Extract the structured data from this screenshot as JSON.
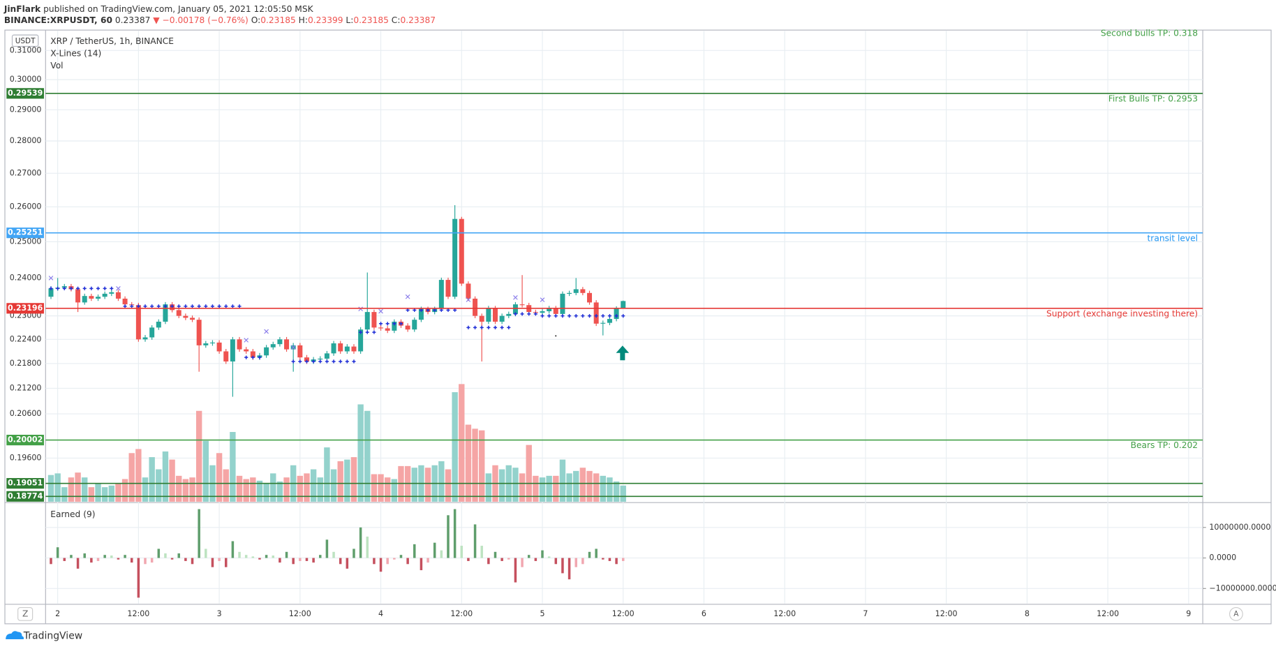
{
  "header": {
    "author": "JinFlark",
    "published": "published on TradingView.com, January 05, 2021 12:05:50 MSK",
    "symbol": "BINANCE:XRPUSDT, 60",
    "price": "0.23387",
    "change": "▼ −0.00178 (−0.76%)",
    "ohlc_labels": [
      "O:",
      "H:",
      "L:",
      "C:"
    ],
    "ohlc_values": [
      "0.23185",
      "0.23399",
      "0.23185",
      "0.23387"
    ]
  },
  "chart_data": {
    "type": "candlestick",
    "legend": [
      "XRP / TetherUS, 1h, BINANCE",
      "X-Lines (14)",
      "Vol"
    ],
    "currency": "USDT",
    "log_scale": true,
    "grid": true,
    "up_color": "#26a69a",
    "down_color": "#ef5350",
    "volume_up_color": "#93d2cc",
    "volume_down_color": "#f5a5a5",
    "ylim": [
      0.1866,
      0.3169
    ],
    "yticks": [
      {
        "value": 0.31,
        "label": "0.31000"
      },
      {
        "value": 0.3,
        "label": "0.30000"
      },
      {
        "value": 0.29,
        "label": "0.29000"
      },
      {
        "value": 0.28,
        "label": "0.28000"
      },
      {
        "value": 0.27,
        "label": "0.27000"
      },
      {
        "value": 0.26,
        "label": "0.26000"
      },
      {
        "value": 0.25,
        "label": "0.25000"
      },
      {
        "value": 0.24,
        "label": "0.24000"
      },
      {
        "value": 0.23,
        "label": "0.23000"
      },
      {
        "value": 0.224,
        "label": "0.22400"
      },
      {
        "value": 0.218,
        "label": "0.21800"
      },
      {
        "value": 0.212,
        "label": "0.21200"
      },
      {
        "value": 0.206,
        "label": "0.20600"
      },
      {
        "value": 0.196,
        "label": "0.19600"
      }
    ],
    "xlim": [
      -1.8,
      170.1
    ],
    "xticks": [
      {
        "value": 0,
        "label": "2"
      },
      {
        "value": 12,
        "label": "12:00"
      },
      {
        "value": 24,
        "label": "3"
      },
      {
        "value": 36,
        "label": "12:00"
      },
      {
        "value": 48,
        "label": "4"
      },
      {
        "value": 60,
        "label": "12:00"
      },
      {
        "value": 72,
        "label": "5"
      },
      {
        "value": 84,
        "label": "12:00"
      },
      {
        "value": 96,
        "label": "6"
      },
      {
        "value": 108,
        "label": "12:00"
      },
      {
        "value": 120,
        "label": "7"
      },
      {
        "value": 132,
        "label": "12:00"
      },
      {
        "value": 144,
        "label": "8"
      },
      {
        "value": 156,
        "label": "12:00"
      },
      {
        "value": 168,
        "label": "9"
      }
    ],
    "x": [
      -1,
      0,
      1,
      2,
      3,
      4,
      5,
      6,
      7,
      8,
      9,
      10,
      11,
      12,
      13,
      14,
      15,
      16,
      17,
      18,
      19,
      20,
      21,
      22,
      23,
      24,
      25,
      26,
      27,
      28,
      29,
      30,
      31,
      32,
      33,
      34,
      35,
      36,
      37,
      38,
      39,
      40,
      41,
      42,
      43,
      44,
      45,
      46,
      47,
      48,
      49,
      50,
      51,
      52,
      53,
      54,
      55,
      56,
      57,
      58,
      59,
      60,
      61,
      62,
      63,
      64,
      65,
      66,
      67,
      68,
      69,
      70,
      71,
      72,
      73,
      74,
      75,
      76,
      77,
      78,
      79,
      80,
      81,
      82,
      83,
      84
    ],
    "open": [
      0.235,
      0.2372,
      0.2374,
      0.2378,
      0.237,
      0.2335,
      0.2352,
      0.2345,
      0.235,
      0.2358,
      0.2362,
      0.2345,
      0.233,
      0.2328,
      0.224,
      0.2245,
      0.227,
      0.2285,
      0.233,
      0.2315,
      0.23,
      0.2295,
      0.229,
      0.2225,
      0.223,
      0.2232,
      0.221,
      0.2185,
      0.224,
      0.2215,
      0.221,
      0.2195,
      0.22,
      0.222,
      0.2228,
      0.224,
      0.2215,
      0.2225,
      0.2195,
      0.2185,
      0.219,
      0.2192,
      0.2205,
      0.223,
      0.221,
      0.2222,
      0.221,
      0.2265,
      0.231,
      0.227,
      0.2268,
      0.2262,
      0.2285,
      0.2275,
      0.2265,
      0.229,
      0.2318,
      0.231,
      0.2318,
      0.2395,
      0.235,
      0.2565,
      0.2385,
      0.2345,
      0.23,
      0.2285,
      0.232,
      0.2285,
      0.23,
      0.2305,
      0.233,
      0.2328,
      0.231,
      0.2308,
      0.2312,
      0.232,
      0.2305,
      0.2358,
      0.236,
      0.237,
      0.236,
      0.2335,
      0.228,
      0.2282,
      0.2292,
      0.23185
    ],
    "high": [
      0.2378,
      0.24,
      0.2384,
      0.2384,
      0.2376,
      0.2358,
      0.2358,
      0.2356,
      0.2364,
      0.2368,
      0.2368,
      0.2351,
      0.2336,
      0.2334,
      0.2251,
      0.2276,
      0.2291,
      0.2336,
      0.2336,
      0.2321,
      0.2306,
      0.2301,
      0.2296,
      0.2236,
      0.2238,
      0.2238,
      0.2216,
      0.2246,
      0.2246,
      0.2221,
      0.2216,
      0.2206,
      0.2226,
      0.2234,
      0.2246,
      0.2246,
      0.2231,
      0.2231,
      0.2201,
      0.2196,
      0.2198,
      0.2211,
      0.2236,
      0.2236,
      0.2228,
      0.2228,
      0.2271,
      0.2415,
      0.2316,
      0.2276,
      0.2274,
      0.2291,
      0.2291,
      0.2281,
      0.2296,
      0.2324,
      0.2324,
      0.2324,
      0.2401,
      0.2401,
      0.2605,
      0.2571,
      0.2391,
      0.2351,
      0.2306,
      0.2326,
      0.2326,
      0.2306,
      0.2311,
      0.2336,
      0.2408,
      0.2334,
      0.2316,
      0.2318,
      0.2326,
      0.2326,
      0.2364,
      0.2366,
      0.24,
      0.2376,
      0.2366,
      0.2341,
      0.2288,
      0.2298,
      0.2325,
      0.23399
    ],
    "low": [
      0.2344,
      0.2366,
      0.2368,
      0.2364,
      0.231,
      0.2329,
      0.2339,
      0.2339,
      0.2344,
      0.2352,
      0.2339,
      0.2324,
      0.2322,
      0.2234,
      0.2234,
      0.2239,
      0.2264,
      0.2279,
      0.2309,
      0.2294,
      0.2289,
      0.2284,
      0.216,
      0.2219,
      0.2224,
      0.2204,
      0.2179,
      0.21,
      0.2209,
      0.2204,
      0.2189,
      0.2189,
      0.2194,
      0.2214,
      0.2222,
      0.2209,
      0.216,
      0.2189,
      0.2179,
      0.2179,
      0.2184,
      0.2186,
      0.2199,
      0.2204,
      0.2204,
      0.2204,
      0.2204,
      0.2259,
      0.2264,
      0.2262,
      0.2256,
      0.2256,
      0.2269,
      0.2259,
      0.2259,
      0.2284,
      0.2304,
      0.2304,
      0.2312,
      0.2344,
      0.2344,
      0.2379,
      0.2339,
      0.2294,
      0.2185,
      0.2279,
      0.2279,
      0.2279,
      0.2294,
      0.2299,
      0.2322,
      0.2304,
      0.2302,
      0.2302,
      0.2306,
      0.2299,
      0.2299,
      0.2352,
      0.2354,
      0.2354,
      0.2329,
      0.2274,
      0.225,
      0.2276,
      0.2286,
      0.23185
    ],
    "close": [
      0.2372,
      0.2374,
      0.2378,
      0.237,
      0.2335,
      0.2352,
      0.2345,
      0.235,
      0.2358,
      0.2362,
      0.2345,
      0.233,
      0.2328,
      0.224,
      0.2245,
      0.227,
      0.2285,
      0.233,
      0.2315,
      0.23,
      0.2295,
      0.229,
      0.2225,
      0.223,
      0.2232,
      0.221,
      0.2185,
      0.224,
      0.2215,
      0.221,
      0.2195,
      0.22,
      0.222,
      0.2228,
      0.224,
      0.2215,
      0.2225,
      0.2195,
      0.2185,
      0.219,
      0.2192,
      0.2205,
      0.223,
      0.221,
      0.2222,
      0.221,
      0.2265,
      0.231,
      0.227,
      0.2268,
      0.2262,
      0.2285,
      0.2275,
      0.2265,
      0.229,
      0.2318,
      0.231,
      0.2318,
      0.2395,
      0.235,
      0.2565,
      0.2385,
      0.2345,
      0.23,
      0.2285,
      0.232,
      0.2285,
      0.23,
      0.2305,
      0.233,
      0.2328,
      0.231,
      0.2308,
      0.2312,
      0.232,
      0.2305,
      0.2358,
      0.236,
      0.237,
      0.236,
      0.2335,
      0.228,
      0.2282,
      0.2292,
      0.23185,
      0.23387
    ],
    "volume": [
      33,
      35,
      18,
      30,
      36,
      30,
      18,
      22,
      18,
      20,
      22,
      28,
      60,
      65,
      30,
      55,
      40,
      62,
      52,
      32,
      28,
      30,
      112,
      75,
      45,
      60,
      40,
      86,
      32,
      28,
      30,
      26,
      22,
      35,
      25,
      30,
      45,
      32,
      35,
      40,
      30,
      67,
      40,
      50,
      52,
      55,
      120,
      112,
      34,
      34,
      30,
      28,
      44,
      44,
      42,
      45,
      42,
      45,
      50,
      40,
      135,
      145,
      95,
      90,
      88,
      35,
      45,
      40,
      45,
      42,
      35,
      70,
      32,
      30,
      32,
      32,
      52,
      35,
      38,
      42,
      38,
      35,
      32,
      30,
      25,
      20
    ],
    "levels": [
      {
        "value": 0.29539,
        "color": "#2e7d32",
        "note": "First Bulls TP: 0.2953",
        "note_color": "#43a047"
      },
      {
        "value": 0.25251,
        "color": "#42a5f5",
        "note": "transit level",
        "note_color": "#2196f3"
      },
      {
        "value": 0.23196,
        "color": "#e53935",
        "note": "Support (exchange investing there)",
        "note_color": "#e53935"
      },
      {
        "value": 0.20002,
        "color": "#43a047",
        "note": "Bears TP: 0.202",
        "note_color": "#43a047"
      },
      {
        "value": 0.19051,
        "color": "#2e7d32"
      },
      {
        "value": 0.18774,
        "color": "#2e7d32"
      }
    ],
    "top_note": "Second bulls TP: 0.318",
    "plus_color": "#1f2ed6",
    "plus_segments": [
      {
        "from": -1,
        "to": 8,
        "value": 0.2372
      },
      {
        "from": 10,
        "to": 27,
        "value": 0.2325
      },
      {
        "from": 28,
        "to": 30,
        "value": 0.2195
      },
      {
        "from": 35,
        "to": 44,
        "value": 0.2185
      },
      {
        "from": 45,
        "to": 47,
        "value": 0.2258
      },
      {
        "from": 48,
        "to": 51,
        "value": 0.228
      },
      {
        "from": 52,
        "to": 59,
        "value": 0.2315
      },
      {
        "from": 61,
        "to": 67,
        "value": 0.227
      },
      {
        "from": 68,
        "to": 71,
        "value": 0.2305
      },
      {
        "from": 72,
        "to": 84,
        "value": 0.23
      }
    ],
    "x_marks": {
      "color": "#8a7dea",
      "x": [
        -1,
        9,
        28,
        31,
        35,
        45,
        48,
        52,
        61,
        68,
        72
      ],
      "values": [
        0.24,
        0.2372,
        0.2238,
        0.226,
        0.222,
        0.2318,
        0.2312,
        0.235,
        0.2342,
        0.2348,
        0.2342
      ]
    },
    "indicator": {
      "title": "Earned (9)",
      "ylim": [
        -14900000,
        17600000
      ],
      "yticks": [
        {
          "value": 10000000,
          "label": "10000000.0000"
        },
        {
          "value": 0,
          "label": "0.0000"
        },
        {
          "value": -10000000,
          "label": "−10000000.0000"
        }
      ],
      "colors": {
        "up_strong": "#5f9e6c",
        "up_weak": "#bde3c1",
        "down_strong": "#c5505e",
        "down_weak": "#f1a7b0"
      },
      "values": [
        -2000000,
        3500000,
        -1000000,
        1000000,
        -3500000,
        1500000,
        -1500000,
        -1000000,
        1000000,
        800000,
        -500000,
        1000000,
        -1500000,
        -13000000,
        -2000000,
        -1500000,
        3000000,
        1500000,
        -500000,
        1500000,
        -1000000,
        -2000000,
        16000000,
        3000000,
        -3000000,
        -1000000,
        -3000000,
        5500000,
        2000000,
        1000000,
        500000,
        -500000,
        1000000,
        800000,
        -1500000,
        2000000,
        -2000000,
        -1000000,
        -1000000,
        -1500000,
        1000000,
        6000000,
        2000000,
        -2000000,
        -3500000,
        3000000,
        10000000,
        7000000,
        -2000000,
        -4500000,
        -2000000,
        -500000,
        1000000,
        -2000000,
        4500000,
        -4000000,
        -1500000,
        5000000,
        2500000,
        14000000,
        16000000,
        4000000,
        -1000000,
        11000000,
        4000000,
        -2000000,
        2000000,
        -1000000,
        -500000,
        -8000000,
        -3000000,
        1000000,
        -1000000,
        2500000,
        500000,
        -2000000,
        -5000000,
        -7000000,
        -3000000,
        -2000000,
        2000000,
        3000000,
        -500000,
        -1000000,
        -2000000,
        -1000000
      ]
    }
  },
  "footer": {
    "brand": "TradingView",
    "left_button": "Z",
    "right_button": "A"
  }
}
